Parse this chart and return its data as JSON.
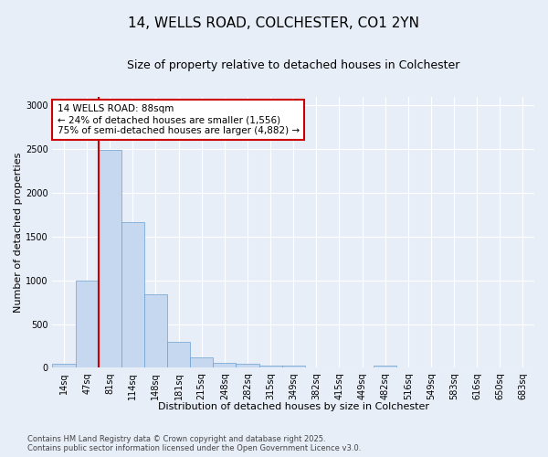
{
  "title": "14, WELLS ROAD, COLCHESTER, CO1 2YN",
  "subtitle": "Size of property relative to detached houses in Colchester",
  "xlabel": "Distribution of detached houses by size in Colchester",
  "ylabel": "Number of detached properties",
  "categories": [
    "14sq",
    "47sq",
    "81sq",
    "114sq",
    "148sq",
    "181sq",
    "215sq",
    "248sq",
    "282sq",
    "315sq",
    "349sq",
    "382sq",
    "415sq",
    "449sq",
    "482sq",
    "516sq",
    "549sq",
    "583sq",
    "616sq",
    "650sq",
    "683sq"
  ],
  "bar_values": [
    50,
    1000,
    2490,
    1670,
    840,
    300,
    120,
    58,
    45,
    30,
    25,
    0,
    0,
    0,
    25,
    0,
    0,
    0,
    0,
    0,
    0
  ],
  "bar_color": "#c5d8f0",
  "bar_edge_color": "#6aa0d0",
  "red_line_index": 2,
  "annotation_text": "14 WELLS ROAD: 88sqm\n← 24% of detached houses are smaller (1,556)\n75% of semi-detached houses are larger (4,882) →",
  "annotation_box_color": "#ffffff",
  "annotation_box_edge_color": "#cc0000",
  "ylim": [
    0,
    3100
  ],
  "yticks": [
    0,
    500,
    1000,
    1500,
    2000,
    2500,
    3000
  ],
  "background_color": "#e8eef8",
  "grid_color": "#ffffff",
  "footer_line1": "Contains HM Land Registry data © Crown copyright and database right 2025.",
  "footer_line2": "Contains public sector information licensed under the Open Government Licence v3.0.",
  "title_fontsize": 11,
  "subtitle_fontsize": 9,
  "xlabel_fontsize": 8,
  "ylabel_fontsize": 8,
  "tick_fontsize": 7,
  "annotation_fontsize": 7.5,
  "footer_fontsize": 6
}
